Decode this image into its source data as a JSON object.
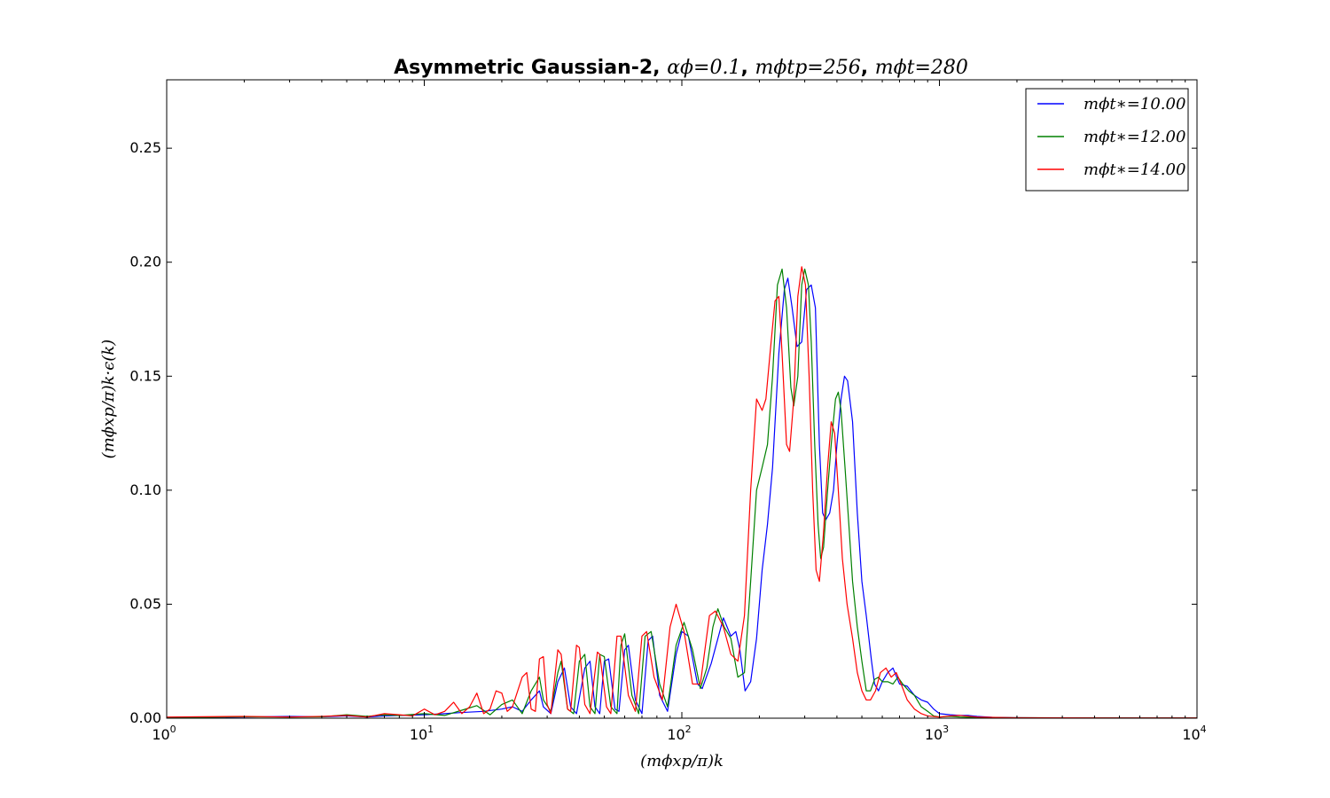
{
  "chart_data": {
    "type": "line",
    "title": {
      "prefix": "Asymmetric Gaussian-2, ",
      "part1": "αϕ=0.1",
      "sep1": ", ",
      "part2": "mϕtp=256",
      "sep2": ", ",
      "part3": "mϕt=280"
    },
    "xlabel": "(mϕxp/π)k",
    "ylabel": "(mϕxp/π)k·ϵ(k)",
    "xscale": "log",
    "xlim": [
      1,
      10000
    ],
    "ylim": [
      0,
      0.28
    ],
    "xticks": [
      {
        "value": 1,
        "base": "10",
        "exp": "0"
      },
      {
        "value": 10,
        "base": "10",
        "exp": "1"
      },
      {
        "value": 100,
        "base": "10",
        "exp": "2"
      },
      {
        "value": 1000,
        "base": "10",
        "exp": "3"
      },
      {
        "value": 10000,
        "base": "10",
        "exp": "4"
      }
    ],
    "yticks": [
      {
        "value": 0.0,
        "label": "0.00"
      },
      {
        "value": 0.05,
        "label": "0.05"
      },
      {
        "value": 0.1,
        "label": "0.10"
      },
      {
        "value": 0.15,
        "label": "0.15"
      },
      {
        "value": 0.2,
        "label": "0.20"
      },
      {
        "value": 0.25,
        "label": "0.25"
      }
    ],
    "legend_position": "top-right",
    "grid": false,
    "series": [
      {
        "name": "mϕt∗=10.00",
        "color": "#0000ff",
        "points": [
          [
            1,
            0.0003
          ],
          [
            2,
            0.0005
          ],
          [
            3,
            0.0008
          ],
          [
            4,
            0.0006
          ],
          [
            5,
            0.001
          ],
          [
            6,
            0.0005
          ],
          [
            7,
            0.001
          ],
          [
            8,
            0.0012
          ],
          [
            10,
            0.0015
          ],
          [
            12,
            0.002
          ],
          [
            14,
            0.0025
          ],
          [
            17,
            0.003
          ],
          [
            20,
            0.004
          ],
          [
            22,
            0.005
          ],
          [
            24,
            0.003
          ],
          [
            26,
            0.008
          ],
          [
            28,
            0.012
          ],
          [
            29,
            0.005
          ],
          [
            31,
            0.002
          ],
          [
            33,
            0.016
          ],
          [
            35,
            0.022
          ],
          [
            37,
            0.005
          ],
          [
            39,
            0.002
          ],
          [
            42,
            0.022
          ],
          [
            44,
            0.025
          ],
          [
            46,
            0.005
          ],
          [
            48,
            0.002
          ],
          [
            50,
            0.025
          ],
          [
            52,
            0.026
          ],
          [
            55,
            0.004
          ],
          [
            57,
            0.003
          ],
          [
            60,
            0.03
          ],
          [
            62,
            0.032
          ],
          [
            66,
            0.008
          ],
          [
            70,
            0.002
          ],
          [
            74,
            0.034
          ],
          [
            77,
            0.036
          ],
          [
            82,
            0.01
          ],
          [
            88,
            0.003
          ],
          [
            95,
            0.028
          ],
          [
            100,
            0.038
          ],
          [
            106,
            0.036
          ],
          [
            115,
            0.015
          ],
          [
            120,
            0.013
          ],
          [
            130,
            0.024
          ],
          [
            145,
            0.044
          ],
          [
            155,
            0.036
          ],
          [
            162,
            0.038
          ],
          [
            168,
            0.03
          ],
          [
            176,
            0.012
          ],
          [
            185,
            0.016
          ],
          [
            195,
            0.035
          ],
          [
            205,
            0.065
          ],
          [
            215,
            0.085
          ],
          [
            225,
            0.11
          ],
          [
            238,
            0.16
          ],
          [
            250,
            0.188
          ],
          [
            258,
            0.193
          ],
          [
            268,
            0.18
          ],
          [
            280,
            0.163
          ],
          [
            292,
            0.165
          ],
          [
            305,
            0.188
          ],
          [
            318,
            0.19
          ],
          [
            330,
            0.18
          ],
          [
            342,
            0.12
          ],
          [
            352,
            0.09
          ],
          [
            362,
            0.087
          ],
          [
            375,
            0.09
          ],
          [
            388,
            0.1
          ],
          [
            400,
            0.12
          ],
          [
            415,
            0.14
          ],
          [
            428,
            0.15
          ],
          [
            440,
            0.148
          ],
          [
            460,
            0.13
          ],
          [
            480,
            0.09
          ],
          [
            500,
            0.06
          ],
          [
            520,
            0.045
          ],
          [
            545,
            0.025
          ],
          [
            560,
            0.015
          ],
          [
            580,
            0.012
          ],
          [
            600,
            0.016
          ],
          [
            630,
            0.02
          ],
          [
            660,
            0.022
          ],
          [
            700,
            0.015
          ],
          [
            750,
            0.014
          ],
          [
            800,
            0.01
          ],
          [
            850,
            0.008
          ],
          [
            900,
            0.007
          ],
          [
            950,
            0.004
          ],
          [
            1000,
            0.002
          ],
          [
            1100,
            0.0015
          ],
          [
            1200,
            0.0012
          ],
          [
            1300,
            0.0012
          ],
          [
            1400,
            0.0008
          ],
          [
            1600,
            0.0004
          ],
          [
            2000,
            0.0002
          ],
          [
            3000,
            0.0001
          ],
          [
            5000,
            0.0001
          ],
          [
            10000,
            0.0001
          ]
        ]
      },
      {
        "name": "mϕt∗=12.00",
        "color": "#008000",
        "points": [
          [
            1,
            0.0003
          ],
          [
            2,
            0.0006
          ],
          [
            3,
            0.0005
          ],
          [
            4,
            0.0006
          ],
          [
            5,
            0.0015
          ],
          [
            6,
            0.0008
          ],
          [
            7,
            0.0015
          ],
          [
            8,
            0.0012
          ],
          [
            10,
            0.002
          ],
          [
            12,
            0.0012
          ],
          [
            14,
            0.0035
          ],
          [
            16,
            0.0055
          ],
          [
            18,
            0.0015
          ],
          [
            20,
            0.006
          ],
          [
            22,
            0.008
          ],
          [
            24,
            0.002
          ],
          [
            26,
            0.012
          ],
          [
            28,
            0.018
          ],
          [
            29,
            0.008
          ],
          [
            31,
            0.003
          ],
          [
            33,
            0.02
          ],
          [
            34,
            0.025
          ],
          [
            36,
            0.004
          ],
          [
            38,
            0.002
          ],
          [
            40,
            0.025
          ],
          [
            42,
            0.028
          ],
          [
            44,
            0.005
          ],
          [
            46,
            0.002
          ],
          [
            48,
            0.028
          ],
          [
            50,
            0.027
          ],
          [
            53,
            0.005
          ],
          [
            56,
            0.002
          ],
          [
            58,
            0.032
          ],
          [
            60,
            0.037
          ],
          [
            64,
            0.01
          ],
          [
            68,
            0.002
          ],
          [
            72,
            0.036
          ],
          [
            76,
            0.038
          ],
          [
            82,
            0.015
          ],
          [
            88,
            0.005
          ],
          [
            95,
            0.032
          ],
          [
            102,
            0.042
          ],
          [
            110,
            0.03
          ],
          [
            118,
            0.013
          ],
          [
            125,
            0.022
          ],
          [
            132,
            0.04
          ],
          [
            138,
            0.048
          ],
          [
            146,
            0.04
          ],
          [
            155,
            0.035
          ],
          [
            165,
            0.018
          ],
          [
            175,
            0.02
          ],
          [
            185,
            0.06
          ],
          [
            195,
            0.1
          ],
          [
            205,
            0.11
          ],
          [
            215,
            0.12
          ],
          [
            225,
            0.15
          ],
          [
            235,
            0.19
          ],
          [
            245,
            0.197
          ],
          [
            255,
            0.18
          ],
          [
            265,
            0.145
          ],
          [
            272,
            0.137
          ],
          [
            282,
            0.15
          ],
          [
            292,
            0.19
          ],
          [
            300,
            0.197
          ],
          [
            310,
            0.19
          ],
          [
            318,
            0.165
          ],
          [
            328,
            0.12
          ],
          [
            338,
            0.085
          ],
          [
            346,
            0.07
          ],
          [
            355,
            0.075
          ],
          [
            368,
            0.1
          ],
          [
            380,
            0.12
          ],
          [
            395,
            0.14
          ],
          [
            405,
            0.143
          ],
          [
            415,
            0.135
          ],
          [
            430,
            0.11
          ],
          [
            445,
            0.085
          ],
          [
            460,
            0.06
          ],
          [
            480,
            0.04
          ],
          [
            500,
            0.025
          ],
          [
            520,
            0.012
          ],
          [
            540,
            0.012
          ],
          [
            560,
            0.017
          ],
          [
            580,
            0.018
          ],
          [
            600,
            0.016
          ],
          [
            630,
            0.016
          ],
          [
            660,
            0.015
          ],
          [
            690,
            0.018
          ],
          [
            720,
            0.015
          ],
          [
            760,
            0.012
          ],
          [
            800,
            0.01
          ],
          [
            850,
            0.005
          ],
          [
            900,
            0.003
          ],
          [
            950,
            0.001
          ],
          [
            1000,
            0.0005
          ],
          [
            1100,
            0.0008
          ],
          [
            1200,
            0.0005
          ],
          [
            1400,
            0.0003
          ],
          [
            2000,
            0.0002
          ],
          [
            5000,
            0.0001
          ],
          [
            10000,
            0.0001
          ]
        ]
      },
      {
        "name": "mϕt∗=14.00",
        "color": "#ff0000",
        "points": [
          [
            1,
            0.0005
          ],
          [
            2,
            0.0008
          ],
          [
            3,
            0.0005
          ],
          [
            4,
            0.0008
          ],
          [
            5,
            0.0012
          ],
          [
            6,
            0.0005
          ],
          [
            7,
            0.002
          ],
          [
            8,
            0.0015
          ],
          [
            9,
            0.001
          ],
          [
            10,
            0.004
          ],
          [
            11,
            0.0015
          ],
          [
            12,
            0.003
          ],
          [
            13,
            0.007
          ],
          [
            14,
            0.002
          ],
          [
            15,
            0.005
          ],
          [
            16,
            0.011
          ],
          [
            17,
            0.002
          ],
          [
            18,
            0.004
          ],
          [
            19,
            0.012
          ],
          [
            20,
            0.011
          ],
          [
            21,
            0.003
          ],
          [
            22,
            0.005
          ],
          [
            24,
            0.018
          ],
          [
            25,
            0.02
          ],
          [
            26,
            0.004
          ],
          [
            27,
            0.003
          ],
          [
            28,
            0.026
          ],
          [
            29,
            0.027
          ],
          [
            30,
            0.006
          ],
          [
            31,
            0.002
          ],
          [
            33,
            0.03
          ],
          [
            34,
            0.028
          ],
          [
            36,
            0.004
          ],
          [
            37,
            0.003
          ],
          [
            39,
            0.032
          ],
          [
            40,
            0.031
          ],
          [
            42,
            0.006
          ],
          [
            44,
            0.002
          ],
          [
            47,
            0.029
          ],
          [
            48,
            0.028
          ],
          [
            51,
            0.005
          ],
          [
            53,
            0.002
          ],
          [
            56,
            0.036
          ],
          [
            58,
            0.036
          ],
          [
            62,
            0.01
          ],
          [
            66,
            0.003
          ],
          [
            70,
            0.036
          ],
          [
            73,
            0.038
          ],
          [
            78,
            0.018
          ],
          [
            84,
            0.008
          ],
          [
            90,
            0.04
          ],
          [
            95,
            0.05
          ],
          [
            102,
            0.038
          ],
          [
            110,
            0.015
          ],
          [
            118,
            0.015
          ],
          [
            128,
            0.045
          ],
          [
            135,
            0.047
          ],
          [
            145,
            0.04
          ],
          [
            155,
            0.028
          ],
          [
            165,
            0.025
          ],
          [
            175,
            0.045
          ],
          [
            185,
            0.1
          ],
          [
            195,
            0.14
          ],
          [
            205,
            0.135
          ],
          [
            212,
            0.14
          ],
          [
            220,
            0.16
          ],
          [
            230,
            0.183
          ],
          [
            238,
            0.185
          ],
          [
            245,
            0.16
          ],
          [
            255,
            0.12
          ],
          [
            262,
            0.117
          ],
          [
            272,
            0.14
          ],
          [
            282,
            0.185
          ],
          [
            292,
            0.198
          ],
          [
            302,
            0.19
          ],
          [
            312,
            0.15
          ],
          [
            322,
            0.1
          ],
          [
            332,
            0.065
          ],
          [
            342,
            0.06
          ],
          [
            354,
            0.08
          ],
          [
            368,
            0.11
          ],
          [
            380,
            0.13
          ],
          [
            392,
            0.125
          ],
          [
            405,
            0.1
          ],
          [
            420,
            0.07
          ],
          [
            438,
            0.05
          ],
          [
            460,
            0.035
          ],
          [
            480,
            0.02
          ],
          [
            500,
            0.012
          ],
          [
            520,
            0.008
          ],
          [
            540,
            0.008
          ],
          [
            565,
            0.012
          ],
          [
            590,
            0.02
          ],
          [
            620,
            0.022
          ],
          [
            650,
            0.018
          ],
          [
            680,
            0.02
          ],
          [
            710,
            0.015
          ],
          [
            750,
            0.008
          ],
          [
            800,
            0.004
          ],
          [
            850,
            0.002
          ],
          [
            900,
            0.001
          ],
          [
            1000,
            0.0005
          ],
          [
            1100,
            0.001
          ],
          [
            1200,
            0.0012
          ],
          [
            1400,
            0.0005
          ],
          [
            2000,
            0.0002
          ],
          [
            5000,
            0.0001
          ],
          [
            10000,
            0.0001
          ]
        ]
      }
    ]
  }
}
